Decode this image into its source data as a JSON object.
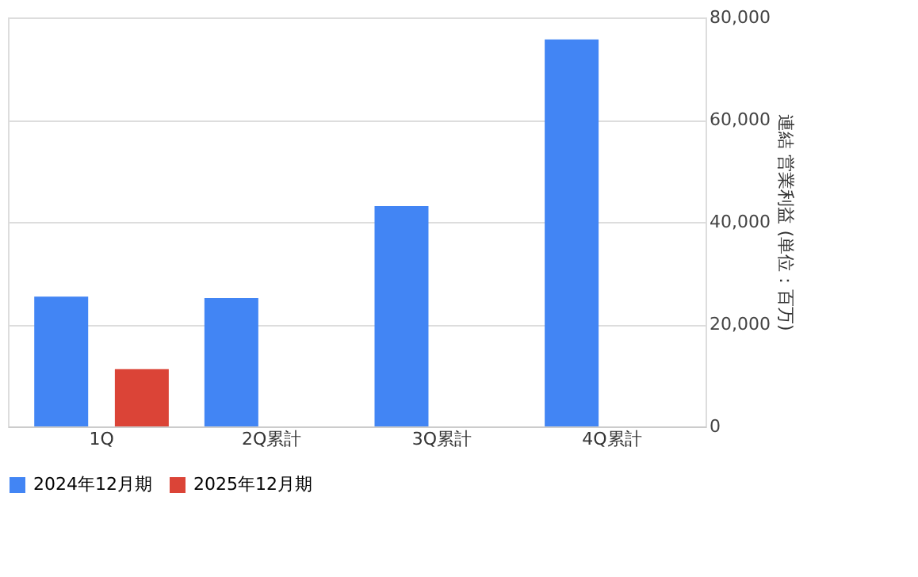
{
  "chart_data": {
    "type": "bar",
    "categories": [
      "1Q",
      "2Q累計",
      "3Q累計",
      "4Q累計"
    ],
    "series": [
      {
        "name": "2024年12月期",
        "color": "#4285f4",
        "values": [
          25400,
          25100,
          43100,
          75700
        ]
      },
      {
        "name": "2025年12月期",
        "color": "#db4437",
        "values": [
          11200,
          null,
          null,
          null
        ]
      }
    ],
    "ylabel": "連結 営業利益 (単位：百万)",
    "ylim": [
      0,
      80000
    ],
    "yticks": [
      {
        "value": 0,
        "label": "0"
      },
      {
        "value": 20000,
        "label": "20,000"
      },
      {
        "value": 40000,
        "label": "40,000"
      },
      {
        "value": 60000,
        "label": "60,000"
      },
      {
        "value": 80000,
        "label": "80,000"
      }
    ],
    "grid": "y",
    "legend": "bottom"
  }
}
